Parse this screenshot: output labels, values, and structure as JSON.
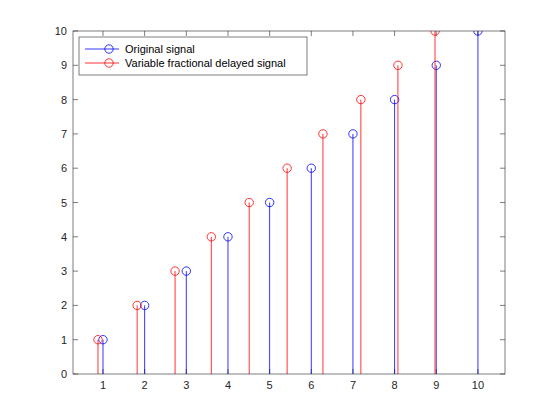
{
  "chart_data": {
    "type": "stem",
    "series": [
      {
        "name": "Original signal",
        "color": "#0000ff",
        "marker": "circle",
        "x": [
          1,
          2,
          3,
          4,
          5,
          6,
          7,
          8,
          9,
          10
        ],
        "values": [
          1,
          2,
          3,
          4,
          5,
          6,
          7,
          8,
          9,
          10
        ]
      },
      {
        "name": "Variable fractional delayed signal",
        "color": "#ff0000",
        "marker": "circle",
        "x": [
          0.88,
          1.82,
          2.73,
          3.6,
          4.51,
          5.42,
          6.28,
          7.19,
          8.08,
          8.97
        ],
        "values": [
          1,
          2,
          3,
          4,
          5,
          6,
          7,
          8,
          9,
          10
        ]
      }
    ],
    "xlim": [
      0.28,
      10.65
    ],
    "xticks": [
      1,
      2,
      3,
      4,
      5,
      6,
      7,
      8,
      9,
      10
    ],
    "ylim": [
      0,
      10
    ],
    "yticks": [
      0,
      1,
      2,
      3,
      4,
      5,
      6,
      7,
      8,
      9,
      10
    ],
    "legend": "northwest"
  }
}
